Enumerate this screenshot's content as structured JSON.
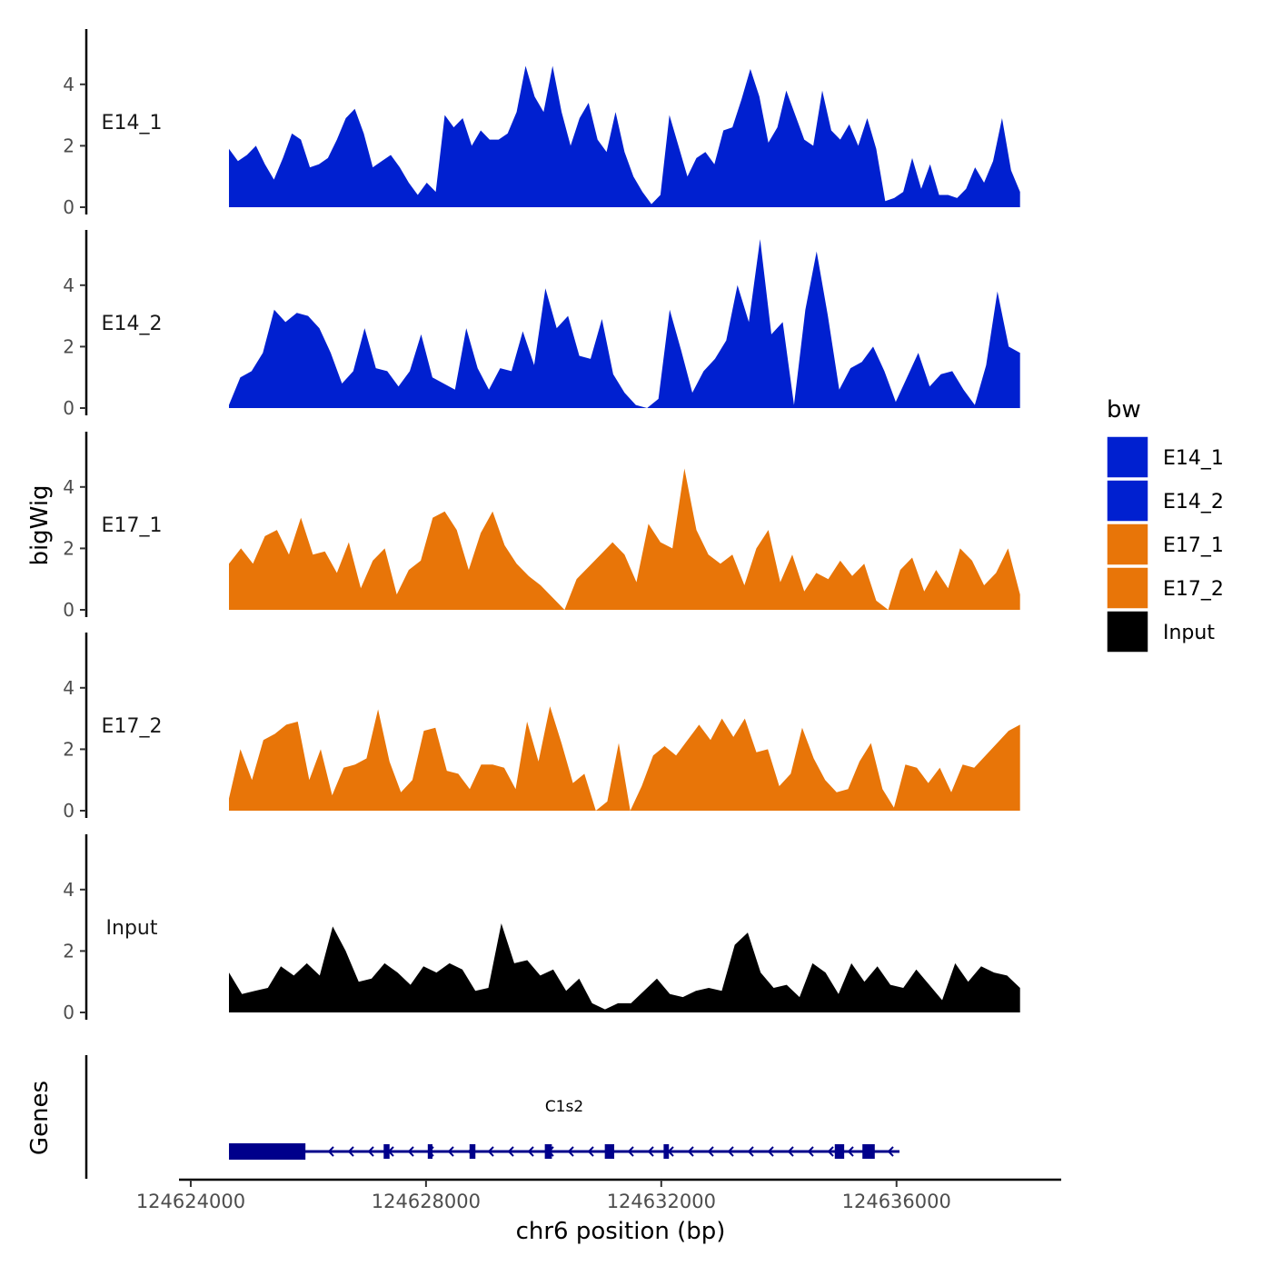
{
  "chart_data": {
    "type": "area",
    "ylabel": "bigWig",
    "xlabel": "chr6 position (bp)",
    "chrom": "chr6",
    "xlim": [
      124623800,
      124638800
    ],
    "ylim": [
      0,
      5.8
    ],
    "yticks": [
      "0",
      "2",
      "4"
    ],
    "xticks": [
      124624000,
      124628000,
      124632000,
      124636000
    ],
    "xtick_labels": [
      "124624000",
      "124628000",
      "124632000",
      "124636000"
    ],
    "data_range": [
      124624650,
      124638100
    ],
    "legend": {
      "title": "bw",
      "items": [
        {
          "label": "E14_1",
          "color": "#0020D0"
        },
        {
          "label": "E14_2",
          "color": "#0020D0"
        },
        {
          "label": "E17_1",
          "color": "#E87508"
        },
        {
          "label": "E17_2",
          "color": "#E87508"
        },
        {
          "label": "Input",
          "color": "#000000"
        }
      ]
    },
    "series": [
      {
        "name": "E14_1",
        "color": "#0020D0",
        "values": [
          1.9,
          1.5,
          1.7,
          2.0,
          1.4,
          0.9,
          1.6,
          2.4,
          2.2,
          1.3,
          1.4,
          1.6,
          2.2,
          2.9,
          3.2,
          2.4,
          1.3,
          1.5,
          1.7,
          1.3,
          0.8,
          0.4,
          0.8,
          0.5,
          3.0,
          2.6,
          2.9,
          2.0,
          2.5,
          2.2,
          2.2,
          2.4,
          3.1,
          4.6,
          3.6,
          3.1,
          4.6,
          3.1,
          2.0,
          2.9,
          3.4,
          2.2,
          1.8,
          3.1,
          1.8,
          1.0,
          0.5,
          0.1,
          0.4,
          3.0,
          2.0,
          1.0,
          1.6,
          1.8,
          1.4,
          2.5,
          2.6,
          3.5,
          4.5,
          3.6,
          2.1,
          2.6,
          3.8,
          3.0,
          2.2,
          2.0,
          3.8,
          2.5,
          2.2,
          2.7,
          2.0,
          2.9,
          1.9,
          0.2,
          0.3,
          0.5,
          1.6,
          0.6,
          1.4,
          0.4,
          0.4,
          0.3,
          0.6,
          1.3,
          0.8,
          1.5,
          2.9,
          1.2,
          0.5
        ]
      },
      {
        "name": "E14_2",
        "color": "#0020D0",
        "values": [
          0.1,
          1.0,
          1.2,
          1.8,
          3.2,
          2.8,
          3.1,
          3.0,
          2.6,
          1.8,
          0.8,
          1.2,
          2.6,
          1.3,
          1.2,
          0.7,
          1.2,
          2.4,
          1.0,
          0.8,
          0.6,
          2.6,
          1.3,
          0.6,
          1.3,
          1.2,
          2.5,
          1.4,
          3.9,
          2.6,
          3.0,
          1.7,
          1.6,
          2.9,
          1.1,
          0.5,
          0.1,
          0.0,
          0.3,
          3.2,
          1.9,
          0.5,
          1.2,
          1.6,
          2.2,
          4.0,
          2.8,
          5.5,
          2.4,
          2.8,
          0.1,
          3.2,
          5.1,
          3.0,
          0.6,
          1.3,
          1.5,
          2.0,
          1.2,
          0.2,
          1.0,
          1.8,
          0.7,
          1.1,
          1.2,
          0.6,
          0.1,
          1.4,
          3.8,
          2.0,
          1.8
        ]
      },
      {
        "name": "E17_1",
        "color": "#E87508",
        "values": [
          1.5,
          2.0,
          1.5,
          2.4,
          2.6,
          1.8,
          3.0,
          1.8,
          1.9,
          1.2,
          2.2,
          0.7,
          1.6,
          2.0,
          0.5,
          1.3,
          1.6,
          3.0,
          3.2,
          2.6,
          1.3,
          2.5,
          3.2,
          2.1,
          1.5,
          1.1,
          0.8,
          0.4,
          0.0,
          1.0,
          1.4,
          1.8,
          2.2,
          1.8,
          0.9,
          2.8,
          2.2,
          2.0,
          4.6,
          2.6,
          1.8,
          1.5,
          1.8,
          0.8,
          2.0,
          2.6,
          0.9,
          1.8,
          0.6,
          1.2,
          1.0,
          1.6,
          1.1,
          1.5,
          0.3,
          0.0,
          1.3,
          1.7,
          0.6,
          1.3,
          0.7,
          2.0,
          1.6,
          0.8,
          1.2,
          2.0,
          0.5
        ]
      },
      {
        "name": "E17_2",
        "color": "#E87508",
        "values": [
          0.4,
          2.0,
          1.0,
          2.3,
          2.5,
          2.8,
          2.9,
          1.0,
          2.0,
          0.5,
          1.4,
          1.5,
          1.7,
          3.3,
          1.6,
          0.6,
          1.0,
          2.6,
          2.7,
          1.3,
          1.2,
          0.7,
          1.5,
          1.5,
          1.4,
          0.7,
          2.9,
          1.6,
          3.4,
          2.2,
          0.9,
          1.2,
          0.0,
          0.3,
          2.2,
          0.0,
          0.8,
          1.8,
          2.1,
          1.8,
          2.3,
          2.8,
          2.3,
          3.0,
          2.4,
          3.0,
          1.9,
          2.0,
          0.8,
          1.2,
          2.7,
          1.7,
          1.0,
          0.6,
          0.7,
          1.6,
          2.2,
          0.7,
          0.1,
          1.5,
          1.4,
          0.9,
          1.4,
          0.6,
          1.5,
          1.4,
          1.8,
          2.2,
          2.6,
          2.8
        ]
      },
      {
        "name": "Input",
        "color": "#000000",
        "values": [
          1.3,
          0.6,
          0.7,
          0.8,
          1.5,
          1.2,
          1.6,
          1.2,
          2.8,
          2.0,
          1.0,
          1.1,
          1.6,
          1.3,
          0.9,
          1.5,
          1.3,
          1.6,
          1.4,
          0.7,
          0.8,
          2.9,
          1.6,
          1.7,
          1.2,
          1.4,
          0.7,
          1.1,
          0.3,
          0.1,
          0.3,
          0.3,
          0.7,
          1.1,
          0.6,
          0.5,
          0.7,
          0.8,
          0.7,
          2.2,
          2.6,
          1.3,
          0.8,
          0.9,
          0.5,
          1.6,
          1.3,
          0.6,
          1.6,
          1.0,
          1.5,
          0.9,
          0.8,
          1.4,
          0.9,
          0.4,
          1.6,
          1.0,
          1.5,
          1.3,
          1.2,
          0.8
        ]
      }
    ],
    "genes_track": {
      "label": "Genes",
      "gene": {
        "name": "C1s2",
        "start": 124624650,
        "end": 124636050,
        "strand": "-",
        "color": "#00008B",
        "exons": [
          [
            124624650,
            124625950
          ],
          [
            124627280,
            124627380
          ],
          [
            124628030,
            124628110
          ],
          [
            124628740,
            124628840
          ],
          [
            124630020,
            124630140
          ],
          [
            124631040,
            124631200
          ],
          [
            124632040,
            124632130
          ],
          [
            124634950,
            124635110
          ],
          [
            124635420,
            124635630
          ]
        ]
      }
    }
  }
}
